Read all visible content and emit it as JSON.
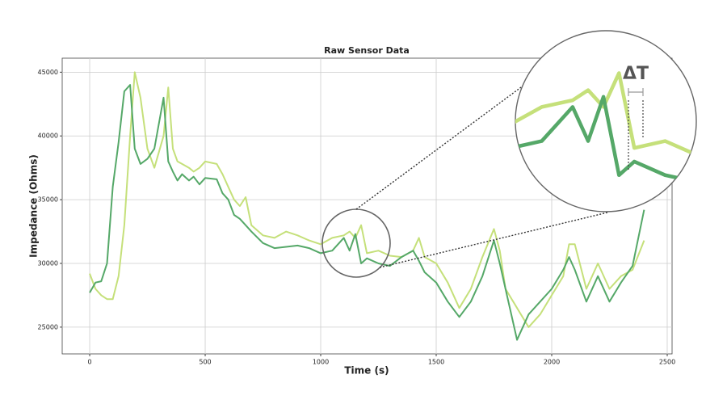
{
  "chart_data": {
    "type": "line",
    "title": "Raw Sensor Data",
    "x_label": "Time (s)",
    "y_label": "Impedance (Ohms)",
    "annotation": "ΔT",
    "x": [
      0,
      25,
      50,
      75,
      100,
      125,
      150,
      175,
      195,
      220,
      250,
      280,
      320,
      340,
      360,
      380,
      400,
      430,
      450,
      475,
      500,
      550,
      575,
      600,
      625,
      650,
      675,
      700,
      750,
      800,
      850,
      900,
      950,
      1000,
      1050,
      1100,
      1125,
      1150,
      1175,
      1200,
      1250,
      1300,
      1350,
      1400,
      1425,
      1450,
      1500,
      1550,
      1600,
      1650,
      1700,
      1750,
      1775,
      1800,
      1850,
      1900,
      1950,
      2000,
      2050,
      2075,
      2100,
      2150,
      2200,
      2250,
      2300,
      2350,
      2400
    ],
    "series": [
      {
        "color": "#55a868",
        "values": [
          27700,
          28500,
          28600,
          30000,
          36000,
          39500,
          43500,
          44000,
          39000,
          37800,
          38200,
          39000,
          43000,
          38000,
          37200,
          36500,
          37000,
          36500,
          36800,
          36200,
          36700,
          36600,
          35500,
          35000,
          33800,
          33500,
          33000,
          32500,
          31600,
          31200,
          31300,
          31400,
          31200,
          30800,
          31000,
          32000,
          31000,
          32300,
          30000,
          30400,
          30000,
          29800,
          30500,
          31000,
          30200,
          29300,
          28500,
          27000,
          25800,
          27000,
          29000,
          31800,
          30000,
          28000,
          24000,
          26000,
          27000,
          28000,
          29500,
          30500,
          29500,
          27000,
          29000,
          27000,
          28500,
          29800,
          34200
        ]
      },
      {
        "color": "#c5e07a",
        "values": [
          29200,
          28000,
          27500,
          27200,
          27200,
          29000,
          33000,
          40000,
          45000,
          43000,
          39000,
          37500,
          40000,
          43800,
          39000,
          38000,
          37800,
          37500,
          37200,
          37500,
          38000,
          37800,
          37000,
          36000,
          35000,
          34500,
          35200,
          33000,
          32200,
          32000,
          32500,
          32200,
          31800,
          31500,
          32000,
          32200,
          32500,
          32000,
          33000,
          30800,
          31000,
          30600,
          30500,
          31000,
          32000,
          30500,
          30000,
          28500,
          26500,
          28000,
          30500,
          32700,
          31000,
          28000,
          26500,
          25000,
          26000,
          27500,
          29000,
          31500,
          31500,
          28000,
          30000,
          28000,
          29000,
          29500,
          31800
        ]
      }
    ],
    "xlim": [
      -119,
      2521
    ],
    "xticks": [
      0,
      500,
      1000,
      1500,
      2000,
      2500
    ],
    "ylim": [
      22900,
      46100
    ],
    "yticks": [
      25000,
      30000,
      35000,
      40000,
      45000
    ],
    "grid": true
  }
}
